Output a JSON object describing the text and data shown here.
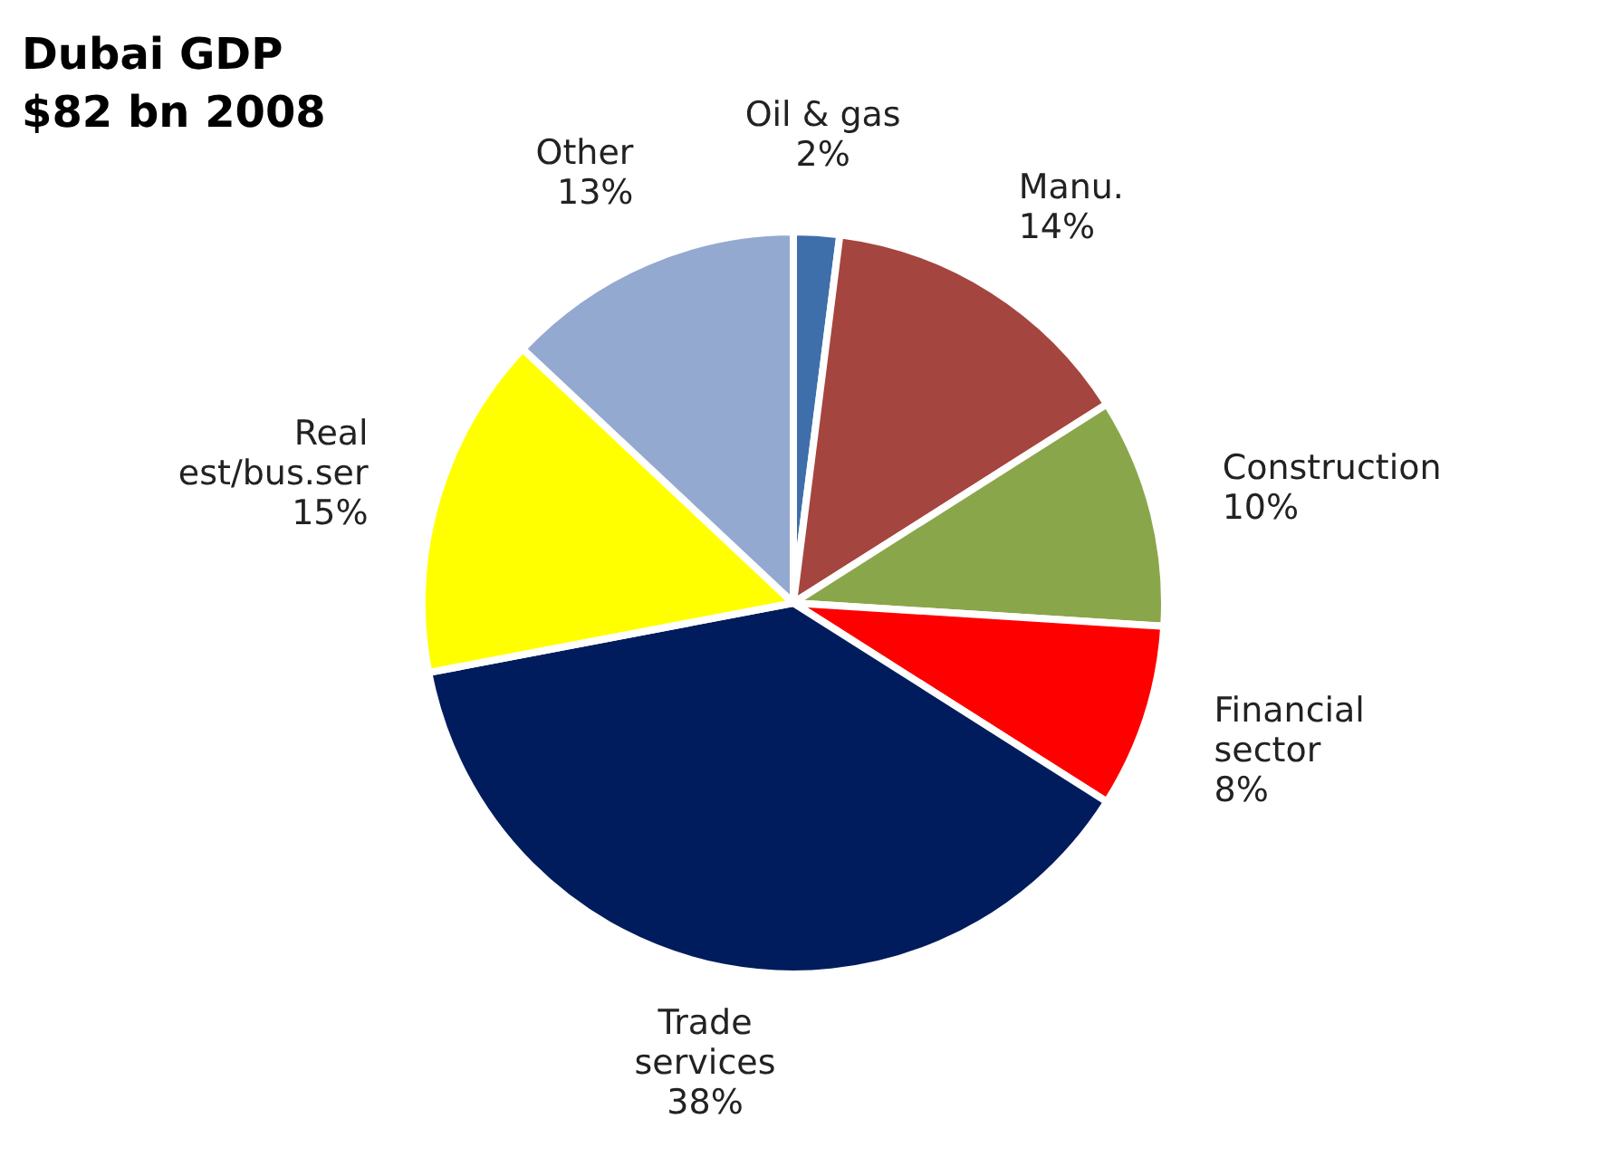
{
  "chart_data": {
    "type": "pie",
    "title": "Dubai GDP",
    "subtitle": "$82 bn 2008",
    "categories": [
      "Oil & gas",
      "Manu.",
      "Construction",
      "Financial sector",
      "Trade services",
      "Real est/bus.ser",
      "Other"
    ],
    "values": [
      2,
      14,
      10,
      8,
      38,
      15,
      13
    ],
    "value_labels": [
      "2%",
      "14%",
      "10%",
      "8%",
      "38%",
      "15%",
      "13%"
    ],
    "colors": [
      "#3f6faa",
      "#a5453f",
      "#8aa64a",
      "#ff0000",
      "#001c5c",
      "#ffff00",
      "#94a9d0"
    ],
    "legend": false
  }
}
